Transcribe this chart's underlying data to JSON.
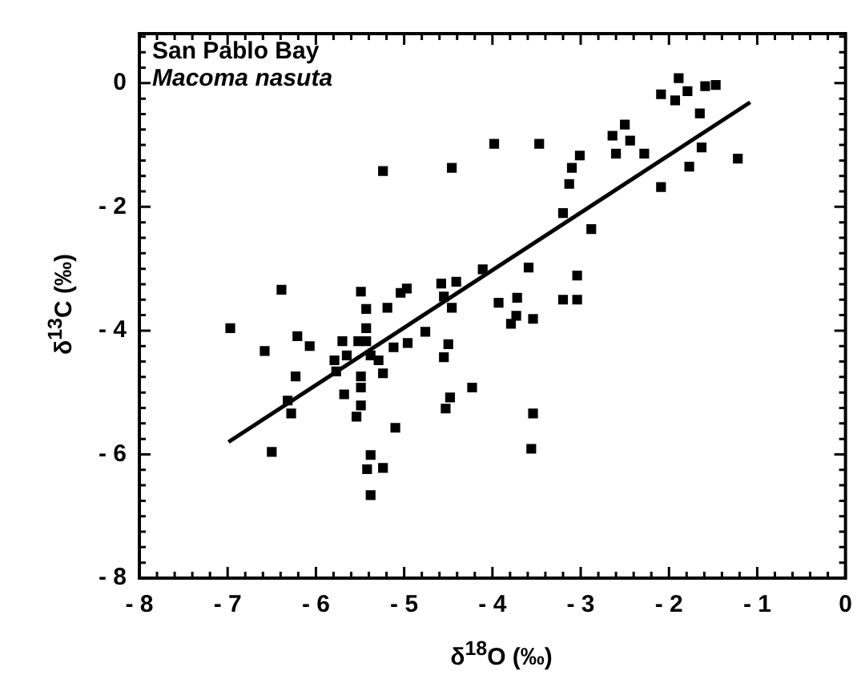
{
  "chart_data": {
    "type": "scatter",
    "annotations": [
      "San Pablo Bay",
      "Macoma nasuta"
    ],
    "xlabel": "δ$^{18}$O (‰)",
    "ylabel": "δ$^{13}$C (‰)",
    "xlim": [
      -8,
      0
    ],
    "ylim": [
      -8,
      0.8
    ],
    "grid": false,
    "legend": false,
    "xticks": [
      {
        "value": -8,
        "label": "- 8"
      },
      {
        "value": -7.8,
        "label": null
      },
      {
        "value": -7.6,
        "label": null
      },
      {
        "value": -7.4,
        "label": null
      },
      {
        "value": -7.2,
        "label": null
      },
      {
        "value": -7,
        "label": "- 7"
      },
      {
        "value": -6.8,
        "label": null
      },
      {
        "value": -6.6,
        "label": null
      },
      {
        "value": -6.4,
        "label": null
      },
      {
        "value": -6.2,
        "label": null
      },
      {
        "value": -6,
        "label": "- 6"
      },
      {
        "value": -5.8,
        "label": null
      },
      {
        "value": -5.6,
        "label": null
      },
      {
        "value": -5.4,
        "label": null
      },
      {
        "value": -5.2,
        "label": null
      },
      {
        "value": -5,
        "label": "- 5"
      },
      {
        "value": -4.8,
        "label": null
      },
      {
        "value": -4.6,
        "label": null
      },
      {
        "value": -4.4,
        "label": null
      },
      {
        "value": -4.2,
        "label": null
      },
      {
        "value": -4,
        "label": "- 4"
      },
      {
        "value": -3.8,
        "label": null
      },
      {
        "value": -3.6,
        "label": null
      },
      {
        "value": -3.4,
        "label": null
      },
      {
        "value": -3.2,
        "label": null
      },
      {
        "value": -3,
        "label": "- 3"
      },
      {
        "value": -2.8,
        "label": null
      },
      {
        "value": -2.6,
        "label": null
      },
      {
        "value": -2.4,
        "label": null
      },
      {
        "value": -2.2,
        "label": null
      },
      {
        "value": -2,
        "label": "- 2"
      },
      {
        "value": -1.8,
        "label": null
      },
      {
        "value": -1.6,
        "label": null
      },
      {
        "value": -1.4,
        "label": null
      },
      {
        "value": -1.2,
        "label": null
      },
      {
        "value": -1,
        "label": "- 1"
      },
      {
        "value": -0.8,
        "label": null
      },
      {
        "value": -0.6,
        "label": null
      },
      {
        "value": -0.4,
        "label": null
      },
      {
        "value": -0.2,
        "label": null
      },
      0
    ],
    "yticks": [
      {
        "value": -8,
        "label": "- 8"
      },
      {
        "value": -7.75,
        "label": null
      },
      {
        "value": -7.5,
        "label": null
      },
      {
        "value": -7.25,
        "label": null
      },
      {
        "value": -7,
        "label": null
      },
      {
        "value": -6.75,
        "label": null
      },
      {
        "value": -6.5,
        "label": null
      },
      {
        "value": -6.25,
        "label": null
      },
      {
        "value": -6,
        "label": "- 6"
      },
      {
        "value": -5.75,
        "label": null
      },
      {
        "value": -5.5,
        "label": null
      },
      {
        "value": -5.25,
        "label": null
      },
      {
        "value": -5,
        "label": null
      },
      {
        "value": -4.75,
        "label": null
      },
      {
        "value": -4.5,
        "label": null
      },
      {
        "value": -4.25,
        "label": null
      },
      {
        "value": -4,
        "label": "- 4"
      },
      {
        "value": -3.75,
        "label": null
      },
      {
        "value": -3.5,
        "label": null
      },
      {
        "value": -3.25,
        "label": null
      },
      {
        "value": -3,
        "label": null
      },
      {
        "value": -2.75,
        "label": null
      },
      {
        "value": -2.5,
        "label": null
      },
      {
        "value": -2.25,
        "label": null
      },
      {
        "value": -2,
        "label": "- 2"
      },
      {
        "value": -1.75,
        "label": null
      },
      {
        "value": -1.5,
        "label": null
      },
      {
        "value": -1.25,
        "label": null
      },
      {
        "value": -1,
        "label": null
      },
      {
        "value": -0.75,
        "label": null
      },
      {
        "value": -0.5,
        "label": null
      },
      {
        "value": -0.25,
        "label": null
      },
      0,
      {
        "value": 0.25,
        "label": null
      },
      {
        "value": 0.5,
        "label": null
      },
      {
        "value": 0.75,
        "label": null
      }
    ],
    "series": [
      {
        "color": "#000000",
        "marker": "square",
        "x": [
          -2.09,
          -1.89,
          -1.93,
          -1.79,
          -1.59,
          -1.47,
          -1.65,
          -1.63,
          -1.77,
          -1.22,
          -2.09,
          -2.64,
          -2.5,
          -2.44,
          -2.6,
          -2.28,
          -3.01,
          -3.1,
          -3.13,
          -3.2,
          -2.88,
          -3.98,
          -3.47,
          -4.11,
          -3.59,
          -3.04,
          -3.93,
          -3.72,
          -3.2,
          -3.04,
          -3.79,
          -3.73,
          -3.54,
          -3.54,
          -3.56,
          -4.23,
          -5.24,
          -4.46,
          -6.39,
          -5.49,
          -5.43,
          -5.19,
          -5.04,
          -4.97,
          -4.58,
          -4.41,
          -4.55,
          -4.46,
          -6.97,
          -6.58,
          -6.21,
          -6.07,
          -6.23,
          -6.5,
          -6.28,
          -6.32,
          -5.7,
          -5.52,
          -5.79,
          -5.77,
          -5.65,
          -5.43,
          -5.43,
          -5.38,
          -5.29,
          -5.24,
          -5.49,
          -5.49,
          -5.68,
          -5.49,
          -5.54,
          -5.1,
          -5.38,
          -5.42,
          -5.24,
          -5.38,
          -5.12,
          -4.96,
          -4.76,
          -4.5,
          -4.55,
          -4.48,
          -4.53
        ],
        "values": [
          -0.18,
          0.08,
          -0.28,
          -0.13,
          -0.05,
          -0.03,
          -0.49,
          -1.04,
          -1.35,
          -1.22,
          -1.68,
          -0.85,
          -0.67,
          -0.93,
          -1.14,
          -1.14,
          -1.17,
          -1.37,
          -1.63,
          -2.1,
          -2.36,
          -0.98,
          -0.98,
          -3.01,
          -2.98,
          -3.11,
          -3.55,
          -3.47,
          -3.5,
          -3.5,
          -3.89,
          -3.76,
          -3.81,
          -5.34,
          -5.91,
          -4.92,
          -1.42,
          -1.37,
          -3.34,
          -3.37,
          -3.65,
          -3.63,
          -3.39,
          -3.32,
          -3.24,
          -3.21,
          -3.45,
          -3.63,
          -3.96,
          -4.33,
          -4.09,
          -4.25,
          -4.74,
          -5.96,
          -5.34,
          -5.13,
          -4.17,
          -4.17,
          -4.48,
          -4.66,
          -4.4,
          -4.17,
          -3.96,
          -4.4,
          -4.48,
          -4.69,
          -4.74,
          -4.92,
          -5.03,
          -5.21,
          -5.39,
          -5.57,
          -6.01,
          -6.24,
          -6.22,
          -6.66,
          -4.27,
          -4.2,
          -4.02,
          -4.22,
          -4.43,
          -5.08,
          -5.26
        ]
      },
      {
        "type": "line",
        "color": "#000000",
        "marker": "none",
        "line_style": "solid",
        "x": [
          -6.99,
          -1.08
        ],
        "values": [
          -5.8,
          -0.31
        ]
      }
    ]
  }
}
